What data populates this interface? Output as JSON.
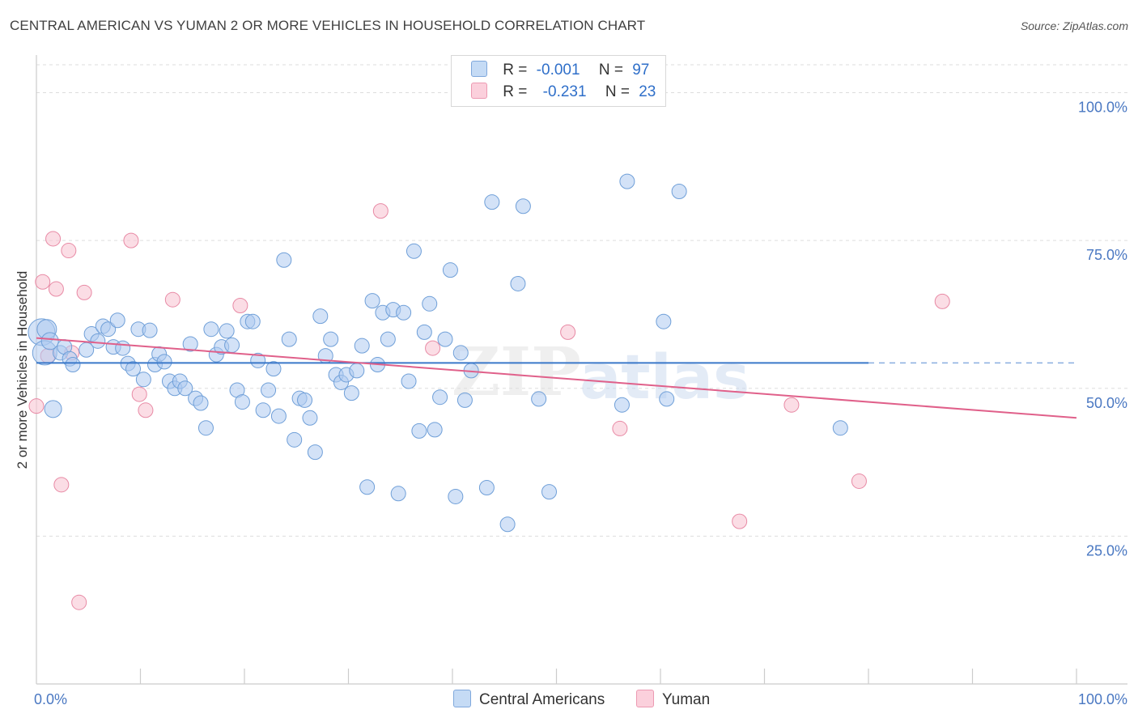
{
  "header": {
    "title": "CENTRAL AMERICAN VS YUMAN 2 OR MORE VEHICLES IN HOUSEHOLD CORRELATION CHART",
    "source": "Source: ZipAtlas.com"
  },
  "legend": {
    "rows": [
      {
        "r_label": "R =",
        "r_value": "-0.001",
        "n_label": "N =",
        "n_value": "97",
        "color": "#aecbf0"
      },
      {
        "r_label": "R =",
        "r_value": "-0.231",
        "n_label": "N =",
        "n_value": "23",
        "color": "#f8bfd0"
      }
    ]
  },
  "bottom_legend": {
    "central": "Central Americans",
    "yuman": "Yuman"
  },
  "watermark": {
    "zip": "ZIP",
    "atlas": "atlas"
  },
  "colors": {
    "blue_fill": "#aecbf0",
    "blue_stroke": "#6f9fd8",
    "blue_line": "#3a78c9",
    "pink_fill": "#f8c6d4",
    "pink_stroke": "#e88aa5",
    "pink_line": "#e0608a",
    "tick_text": "#4a78c2",
    "grid": "#dddddd"
  },
  "chart_data": {
    "type": "scatter",
    "title": "CENTRAL AMERICAN VS YUMAN 2 OR MORE VEHICLES IN HOUSEHOLD CORRELATION CHART",
    "ylabel": "2 or more Vehicles in Household",
    "xlabel": "",
    "xlim": [
      0,
      100
    ],
    "ylim": [
      0,
      105
    ],
    "x_tick_labels": [
      "0.0%",
      "100.0%"
    ],
    "y_ticks": [
      25,
      50,
      75,
      100
    ],
    "y_tick_labels": [
      "25.0%",
      "50.0%",
      "75.0%",
      "100.0%"
    ],
    "grid": true,
    "series": [
      {
        "name": "Central Americans",
        "trend": {
          "x0": 0,
          "y0": 54.3,
          "x1": 80,
          "y1": 54.3,
          "dashed_to": 100
        },
        "points": [
          [
            0.5,
            59.5,
            22
          ],
          [
            0.8,
            56,
            20
          ],
          [
            1.0,
            60,
            16
          ],
          [
            1.3,
            58,
            14
          ],
          [
            2.3,
            56,
            12
          ],
          [
            2.7,
            57,
            12
          ],
          [
            3.2,
            55,
            12
          ],
          [
            3.5,
            54,
            12
          ],
          [
            1.6,
            46.5,
            14
          ],
          [
            4.8,
            56.5,
            12
          ],
          [
            5.3,
            59.2,
            12
          ],
          [
            5.9,
            58,
            12
          ],
          [
            6.4,
            60.5,
            12
          ],
          [
            6.9,
            60,
            12
          ],
          [
            7.4,
            57,
            12
          ],
          [
            7.8,
            61.5,
            12
          ],
          [
            8.3,
            56.8,
            12
          ],
          [
            8.8,
            54.2,
            12
          ],
          [
            9.3,
            53.3,
            12
          ],
          [
            9.8,
            60,
            12
          ],
          [
            10.3,
            51.5,
            12
          ],
          [
            10.9,
            59.8,
            12
          ],
          [
            11.4,
            54,
            12
          ],
          [
            11.8,
            55.8,
            12
          ],
          [
            12.3,
            54.5,
            12
          ],
          [
            12.8,
            51.2,
            12
          ],
          [
            13.3,
            50,
            12
          ],
          [
            13.8,
            51.2,
            12
          ],
          [
            14.3,
            50,
            12
          ],
          [
            14.8,
            57.5,
            12
          ],
          [
            15.3,
            48.3,
            12
          ],
          [
            15.8,
            47.5,
            12
          ],
          [
            16.3,
            43.3,
            12
          ],
          [
            16.8,
            60,
            12
          ],
          [
            17.3,
            55.7,
            12
          ],
          [
            17.8,
            57,
            12
          ],
          [
            18.3,
            59.7,
            12
          ],
          [
            18.8,
            57.3,
            12
          ],
          [
            19.3,
            49.7,
            12
          ],
          [
            19.8,
            47.7,
            12
          ],
          [
            20.3,
            61.3,
            12
          ],
          [
            20.8,
            61.3,
            12
          ],
          [
            21.3,
            54.7,
            12
          ],
          [
            21.8,
            46.3,
            12
          ],
          [
            22.3,
            49.7,
            12
          ],
          [
            22.8,
            53.3,
            12
          ],
          [
            23.3,
            45.3,
            12
          ],
          [
            23.8,
            71.7,
            12
          ],
          [
            24.3,
            58.3,
            12
          ],
          [
            24.8,
            41.3,
            12
          ],
          [
            25.3,
            48.3,
            12
          ],
          [
            25.8,
            48,
            12
          ],
          [
            26.3,
            45,
            12
          ],
          [
            26.8,
            39.2,
            12
          ],
          [
            27.3,
            62.2,
            12
          ],
          [
            27.8,
            55.5,
            12
          ],
          [
            28.3,
            58.3,
            12
          ],
          [
            28.8,
            52.3,
            12
          ],
          [
            29.3,
            51,
            12
          ],
          [
            29.8,
            52.3,
            12
          ],
          [
            30.3,
            49.2,
            12
          ],
          [
            30.8,
            53,
            12
          ],
          [
            31.3,
            57.2,
            12
          ],
          [
            31.8,
            33.3,
            12
          ],
          [
            32.3,
            64.8,
            12
          ],
          [
            32.8,
            54,
            12
          ],
          [
            33.3,
            62.8,
            12
          ],
          [
            33.8,
            58.3,
            12
          ],
          [
            34.3,
            63.3,
            12
          ],
          [
            34.8,
            32.2,
            12
          ],
          [
            35.3,
            62.8,
            12
          ],
          [
            35.8,
            51.2,
            12
          ],
          [
            36.3,
            73.2,
            12
          ],
          [
            36.8,
            42.8,
            12
          ],
          [
            37.3,
            59.5,
            12
          ],
          [
            37.8,
            64.3,
            12
          ],
          [
            38.3,
            43,
            12
          ],
          [
            38.8,
            48.5,
            12
          ],
          [
            39.3,
            58.3,
            12
          ],
          [
            39.8,
            70,
            12
          ],
          [
            40.3,
            31.7,
            12
          ],
          [
            40.8,
            56,
            12
          ],
          [
            41.2,
            48,
            12
          ],
          [
            41.8,
            53,
            12
          ],
          [
            43.3,
            33.2,
            12
          ],
          [
            43.8,
            81.5,
            12
          ],
          [
            45.3,
            27,
            12
          ],
          [
            46.3,
            67.7,
            12
          ],
          [
            46.8,
            80.8,
            12
          ],
          [
            48.3,
            48.2,
            12
          ],
          [
            49.3,
            32.5,
            12
          ],
          [
            56.3,
            47.2,
            12
          ],
          [
            56.8,
            85,
            12
          ],
          [
            60.3,
            61.3,
            12
          ],
          [
            60.6,
            48.2,
            12
          ],
          [
            61.8,
            83.3,
            12
          ],
          [
            77.3,
            43.3,
            12
          ]
        ]
      },
      {
        "name": "Yuman",
        "trend": {
          "x0": 0,
          "y0": 58.5,
          "x1": 100,
          "y1": 45.0
        },
        "points": [
          [
            0.0,
            47,
            12
          ],
          [
            0.6,
            68,
            12
          ],
          [
            1.1,
            55.5,
            12
          ],
          [
            1.6,
            75.3,
            12
          ],
          [
            1.9,
            66.8,
            12
          ],
          [
            2.4,
            33.7,
            12
          ],
          [
            3.1,
            73.3,
            12
          ],
          [
            3.4,
            56,
            12
          ],
          [
            4.1,
            13.8,
            12
          ],
          [
            4.6,
            66.2,
            12
          ],
          [
            9.1,
            75,
            12
          ],
          [
            9.9,
            49,
            12
          ],
          [
            10.5,
            46.3,
            12
          ],
          [
            13.1,
            65,
            12
          ],
          [
            19.6,
            64,
            12
          ],
          [
            33.1,
            80,
            12
          ],
          [
            38.1,
            56.8,
            12
          ],
          [
            51.1,
            59.5,
            12
          ],
          [
            56.1,
            43.2,
            12
          ],
          [
            67.6,
            27.5,
            12
          ],
          [
            72.6,
            47.2,
            12
          ],
          [
            79.1,
            34.3,
            12
          ],
          [
            87.1,
            64.7,
            12
          ]
        ]
      }
    ]
  }
}
